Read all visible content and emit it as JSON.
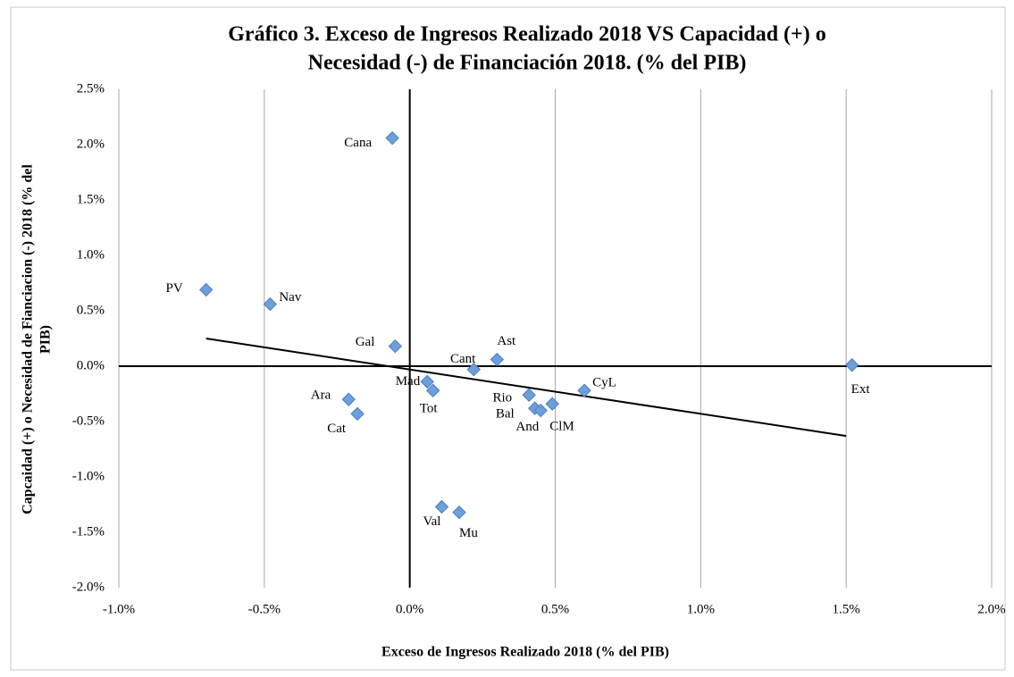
{
  "chart_data": {
    "type": "scatter",
    "title": [
      "Gráfico 3. Exceso de Ingresos Realizado 2018 VS Capacidad (+) o",
      "Necesidad (-) de Financiación 2018. (% del PIB)"
    ],
    "x_label": "Exceso de Ingresos Realizado 2018 (% del PIB)",
    "y_label": [
      "Capcaidad (+) o Necesidad de Fianciacion (-)  2018 (% del",
      "PIB)"
    ],
    "color": "#6f9fd8",
    "labels": [
      "PV",
      "Nav",
      "Cana",
      "Gal",
      "Cant",
      "Ast",
      "Mad",
      "Tot",
      "Ara",
      "Cat",
      "Rio",
      "Bal",
      "And",
      "ClM",
      "CyL",
      "Ext",
      "Val",
      "Mu"
    ],
    "x": [
      -0.7,
      -0.48,
      -0.06,
      -0.05,
      0.22,
      0.3,
      0.06,
      0.08,
      -0.21,
      -0.18,
      0.41,
      0.43,
      0.45,
      0.49,
      0.6,
      1.52,
      0.11,
      0.17
    ],
    "y": [
      0.69,
      0.56,
      2.06,
      0.18,
      -0.03,
      0.06,
      -0.14,
      -0.22,
      -0.3,
      -0.43,
      -0.26,
      -0.38,
      -0.4,
      -0.34,
      -0.22,
      0.01,
      -1.27,
      -1.32
    ],
    "trendline": {
      "x": [
        -0.7,
        1.5
      ],
      "y": [
        0.25,
        -0.63
      ]
    },
    "xlim": [
      -1.0,
      2.0
    ],
    "ylim": [
      -2.0,
      2.5
    ],
    "xticks": [
      {
        "value": -1.0,
        "label": "-1.0%"
      },
      {
        "value": -0.5,
        "label": "-0.5%"
      },
      {
        "value": 0,
        "label": "0.0%"
      },
      {
        "value": 0.5,
        "label": "0.5%"
      },
      {
        "value": 1.0,
        "label": "1.0%"
      },
      {
        "value": 1.5,
        "label": "1.5%"
      },
      {
        "value": 2.0,
        "label": "2.0%"
      }
    ],
    "yticks": [
      {
        "value": -2.0,
        "label": "-2.0%"
      },
      {
        "value": -1.5,
        "label": "-1.5%"
      },
      {
        "value": -1.0,
        "label": "-1.0%"
      },
      {
        "value": -0.5,
        "label": "-0.5%"
      },
      {
        "value": 0,
        "label": "0.0%"
      },
      {
        "value": 0.5,
        "label": "0.5%"
      },
      {
        "value": 1.0,
        "label": "1.0%"
      },
      {
        "value": 1.5,
        "label": "1.5%"
      },
      {
        "value": 2.0,
        "label": "2.0%"
      },
      {
        "value": 2.5,
        "label": "2.5%"
      }
    ],
    "grid": true
  }
}
